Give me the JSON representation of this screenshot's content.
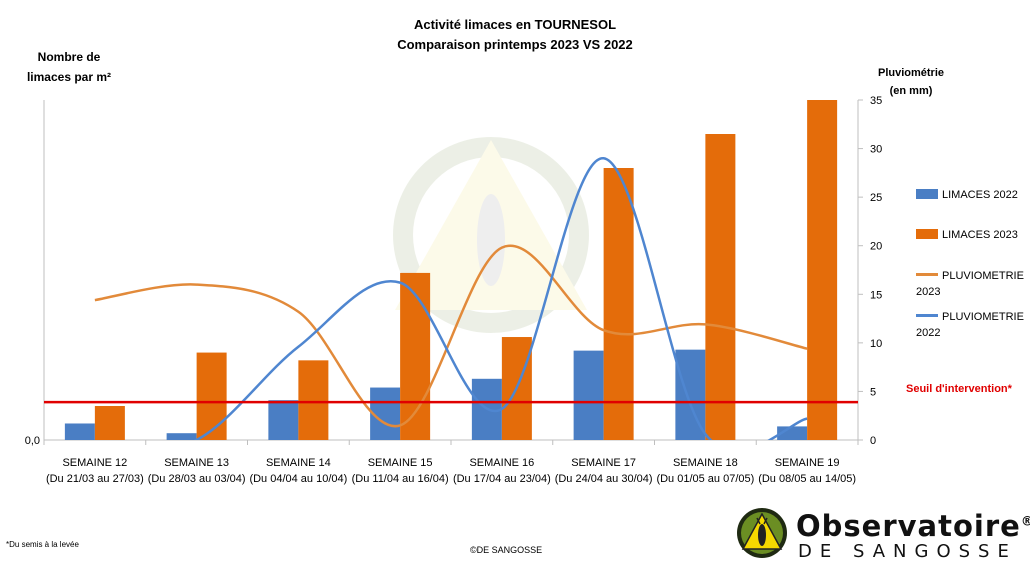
{
  "title_line1": "Activité limaces en TOURNESOL",
  "title_line2": "Comparaison printemps 2023 VS 2022",
  "footnote": "*Du semis à la levée",
  "credit": "©DE SANGOSSE",
  "logo": {
    "word": "Observatoire",
    "registered": "®",
    "sub": "DE SANGOSSE",
    "icon": "slug-warning-icon"
  },
  "threshold_label": "Seuil d'intervention*",
  "colors": {
    "limaces_2022": "#4a7ec4",
    "limaces_2023": "#e46c0a",
    "pluvio_2023": "#e28a3a",
    "pluvio_2022": "#4f86d0",
    "threshold": "#e00000"
  },
  "chart_data": {
    "type": "bar",
    "categories": [
      {
        "label": "SEMAINE 12",
        "period": "(Du 21/03 au 27/03)"
      },
      {
        "label": "SEMAINE 13",
        "period": "(Du 28/03 au 03/04)"
      },
      {
        "label": "SEMAINE 14",
        "period": "(Du 04/04 au 10/04)"
      },
      {
        "label": "SEMAINE 15",
        "period": "(Du 11/04 au 16/04)"
      },
      {
        "label": "SEMAINE 16",
        "period": "(Du 17/04 au 23/04)"
      },
      {
        "label": "SEMAINE 17",
        "period": "(Du 24/04 au 30/04)"
      },
      {
        "label": "SEMAINE 18",
        "period": "(Du 01/05 au 07/05)"
      },
      {
        "label": "SEMAINE 19",
        "period": "(Du 08/05 au 14/05)"
      }
    ],
    "left_axis": {
      "label_line1": "Nombre de",
      "label_line2": "limaces par m²",
      "tick_labels": [
        "0,0"
      ]
    },
    "right_axis": {
      "label_line1": "Pluviométrie",
      "label_line2": "(en mm)",
      "min": 0,
      "max": 35,
      "ticks": [
        0,
        5,
        10,
        15,
        20,
        25,
        30,
        35
      ]
    },
    "bar_series": [
      {
        "name": "LIMACES 2022",
        "values": [
          1.7,
          0.7,
          4.1,
          5.4,
          6.3,
          9.2,
          9.3,
          1.4
        ]
      },
      {
        "name": "LIMACES 2023",
        "values": [
          3.5,
          9.0,
          8.2,
          17.2,
          10.6,
          28.0,
          31.5,
          35.0
        ]
      }
    ],
    "line_series": [
      {
        "name": "PLUVIOMETRIE 2023",
        "values": [
          14.4,
          16.0,
          13.2,
          1.5,
          19.8,
          11.3,
          11.9,
          9.4
        ]
      },
      {
        "name": "PLUVIOMETRIE 2022",
        "values": [
          -1.2,
          0.0,
          9.6,
          16.2,
          3.2,
          29.0,
          0.6,
          2.2
        ]
      }
    ],
    "threshold_value": 3.9
  }
}
